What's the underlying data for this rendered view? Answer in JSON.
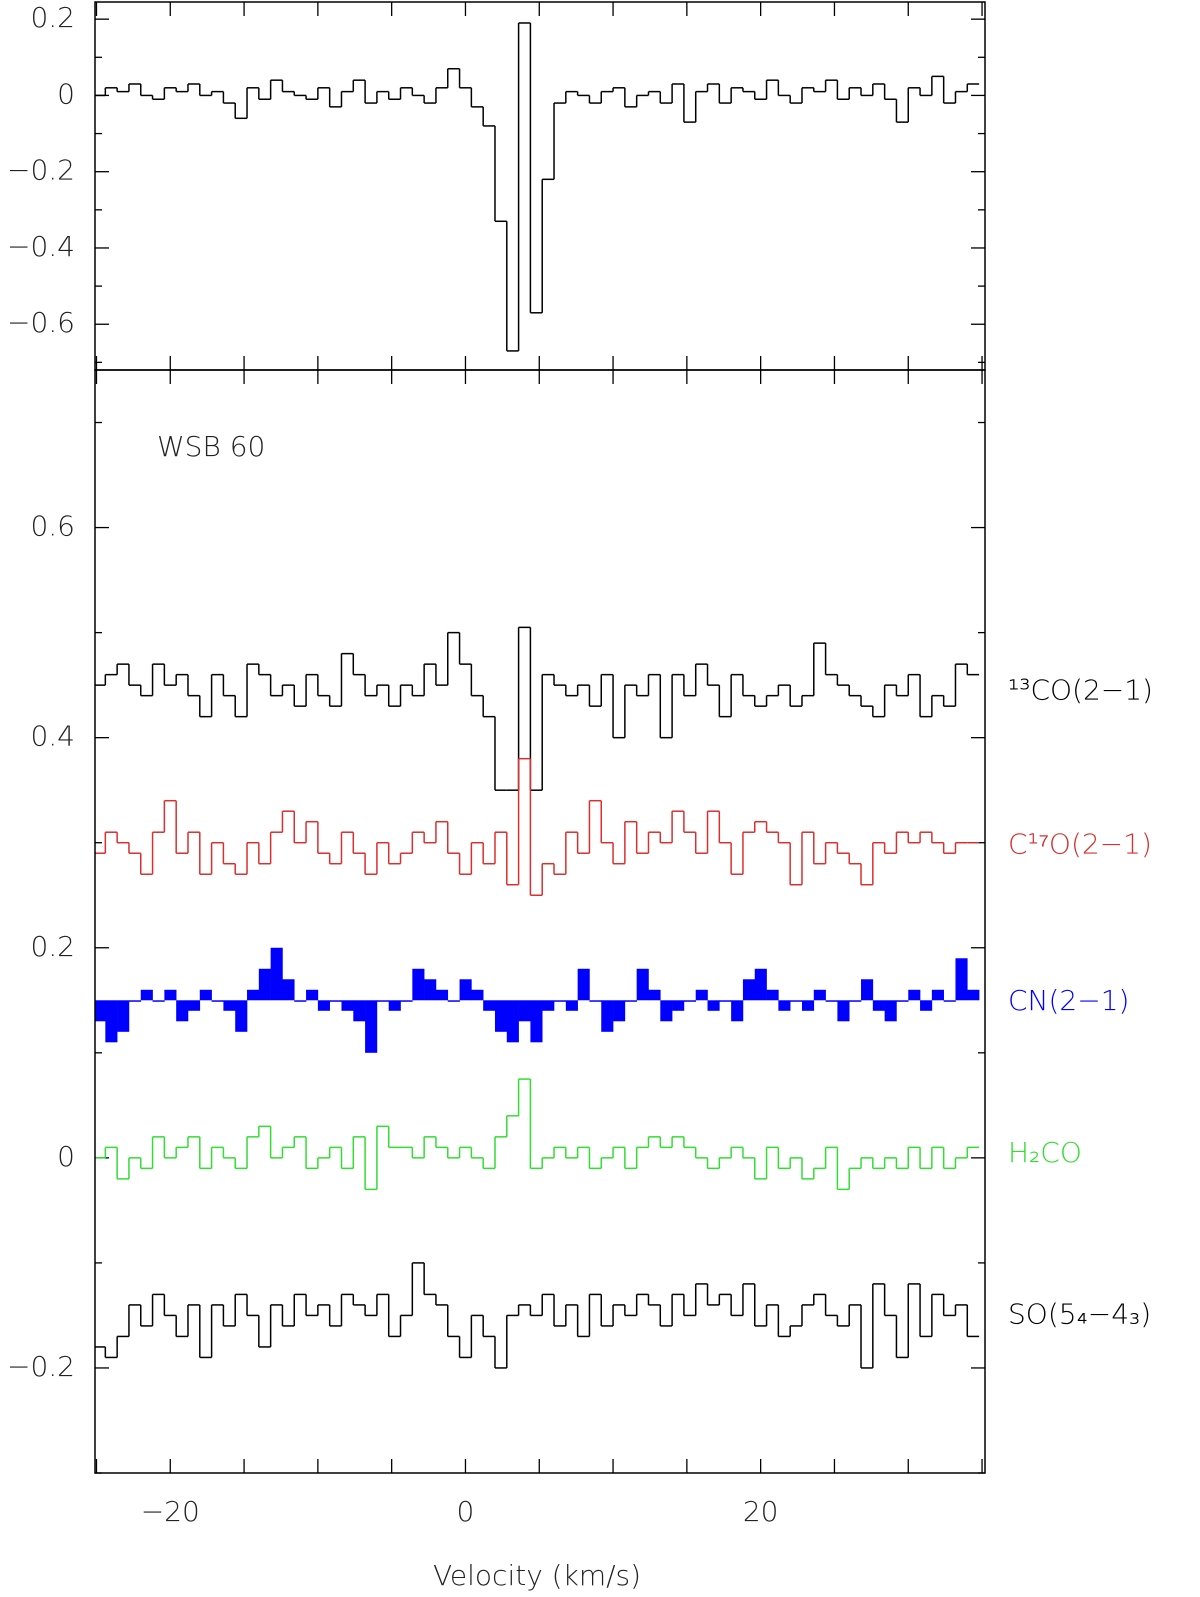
{
  "chart_data": [
    {
      "type": "step",
      "xlim": [
        -25.1,
        35.2
      ],
      "ylim": [
        -0.72,
        0.245
      ],
      "xticks": [
        -25,
        -20,
        -15,
        -10,
        -5,
        0,
        5,
        10,
        15,
        20,
        25,
        30,
        35
      ],
      "xtick_labels": false,
      "yticks": [
        0.2,
        0,
        {
          "value": -0.2,
          "label": "−0.2"
        },
        {
          "value": -0.4,
          "label": "−0.4"
        },
        {
          "value": -0.6,
          "label": "−0.6"
        }
      ],
      "yminorticks": [
        0.1,
        -0.1,
        -0.3,
        -0.5,
        -0.7
      ],
      "x": [
        -24.8,
        -24,
        -23.2,
        -22.4,
        -21.6,
        -20.8,
        -20,
        -19.2,
        -18.4,
        -17.6,
        -16.8,
        -16,
        -15.2,
        -14.4,
        -13.6,
        -12.8,
        -12,
        -11.2,
        -10.4,
        -9.6,
        -8.8,
        -8,
        -7.2,
        -6.4,
        -5.6,
        -4.8,
        -4,
        -3.2,
        -2.4,
        -1.6,
        -0.8,
        0,
        0.8,
        1.6,
        2.4,
        3.2,
        4,
        4.8,
        5.6,
        6.4,
        7.2,
        8,
        8.8,
        9.6,
        10.4,
        11.2,
        12,
        12.8,
        13.6,
        14.4,
        15.2,
        16,
        16.8,
        17.6,
        18.4,
        19.2,
        20,
        20.8,
        21.6,
        22.4,
        23.2,
        24,
        24.8,
        25.6,
        26.4,
        27.2,
        28,
        28.8,
        29.6,
        30.4,
        31.2,
        32,
        32.8,
        33.6,
        34.4
      ],
      "series": [
        {
          "color": "#000000",
          "values": [
            0.0,
            0.02,
            0.01,
            0.03,
            0.0,
            -0.01,
            0.02,
            0.01,
            0.03,
            0.0,
            0.01,
            -0.02,
            -0.06,
            0.02,
            -0.01,
            0.04,
            0.01,
            0.0,
            -0.01,
            0.02,
            -0.03,
            0.01,
            0.04,
            -0.02,
            0.01,
            -0.01,
            0.02,
            0.0,
            -0.02,
            0.02,
            0.07,
            0.02,
            -0.03,
            -0.08,
            -0.33,
            -0.67,
            0.19,
            -0.57,
            -0.22,
            -0.02,
            0.01,
            0.0,
            -0.02,
            0.01,
            0.02,
            -0.03,
            0.0,
            0.01,
            -0.02,
            0.03,
            -0.07,
            0.01,
            0.03,
            -0.02,
            0.02,
            0.01,
            -0.01,
            0.04,
            0.0,
            -0.02,
            0.02,
            0.01,
            0.04,
            -0.01,
            0.02,
            0.0,
            0.03,
            -0.01,
            -0.07,
            0.02,
            0.0,
            0.05,
            -0.02,
            0.01,
            0.03
          ]
        }
      ]
    },
    {
      "type": "step",
      "annotation": "WSB 60",
      "xlabel": "Velocity (km/s)",
      "xlim": [
        -25.1,
        35.2
      ],
      "ylim": [
        -0.3,
        0.75
      ],
      "xticks": [
        {
          "value": -20,
          "label": "−20"
        },
        0,
        20
      ],
      "xminorticks": [
        -25,
        -15,
        -10,
        -5,
        5,
        10,
        15,
        25,
        30,
        35
      ],
      "yticks": [
        0.6,
        0.4,
        0.2,
        0,
        {
          "value": -0.2,
          "label": "−0.2"
        }
      ],
      "yminorticks": [
        0.7,
        0.5,
        0.3,
        0.1,
        -0.1,
        -0.3
      ],
      "x": [
        -24.8,
        -24,
        -23.2,
        -22.4,
        -21.6,
        -20.8,
        -20,
        -19.2,
        -18.4,
        -17.6,
        -16.8,
        -16,
        -15.2,
        -14.4,
        -13.6,
        -12.8,
        -12,
        -11.2,
        -10.4,
        -9.6,
        -8.8,
        -8,
        -7.2,
        -6.4,
        -5.6,
        -4.8,
        -4,
        -3.2,
        -2.4,
        -1.6,
        -0.8,
        0,
        0.8,
        1.6,
        2.4,
        3.2,
        4,
        4.8,
        5.6,
        6.4,
        7.2,
        8,
        8.8,
        9.6,
        10.4,
        11.2,
        12,
        12.8,
        13.6,
        14.4,
        15.2,
        16,
        16.8,
        17.6,
        18.4,
        19.2,
        20,
        20.8,
        21.6,
        22.4,
        23.2,
        24,
        24.8,
        25.6,
        26.4,
        27.2,
        28,
        28.8,
        29.6,
        30.4,
        31.2,
        32,
        32.8,
        33.6,
        34.4
      ],
      "series": [
        {
          "name": "¹³CO(2−1)",
          "color": "#000000",
          "values": [
            0.45,
            0.46,
            0.47,
            0.45,
            0.44,
            0.47,
            0.45,
            0.46,
            0.44,
            0.42,
            0.46,
            0.44,
            0.42,
            0.47,
            0.46,
            0.44,
            0.45,
            0.43,
            0.46,
            0.44,
            0.43,
            0.48,
            0.46,
            0.44,
            0.45,
            0.43,
            0.45,
            0.44,
            0.47,
            0.45,
            0.5,
            0.47,
            0.44,
            0.42,
            0.35,
            0.35,
            0.505,
            0.35,
            0.46,
            0.45,
            0.44,
            0.45,
            0.43,
            0.46,
            0.4,
            0.45,
            0.44,
            0.46,
            0.4,
            0.46,
            0.44,
            0.47,
            0.45,
            0.42,
            0.46,
            0.44,
            0.43,
            0.44,
            0.45,
            0.43,
            0.44,
            0.49,
            0.46,
            0.45,
            0.44,
            0.43,
            0.42,
            0.45,
            0.44,
            0.46,
            0.42,
            0.44,
            0.43,
            0.47,
            0.46
          ]
        },
        {
          "name": "C¹⁷O(2−1)",
          "color": "#d83030",
          "values": [
            0.29,
            0.31,
            0.3,
            0.29,
            0.27,
            0.31,
            0.34,
            0.29,
            0.31,
            0.27,
            0.3,
            0.28,
            0.27,
            0.3,
            0.28,
            0.31,
            0.33,
            0.3,
            0.32,
            0.29,
            0.28,
            0.31,
            0.29,
            0.27,
            0.3,
            0.28,
            0.29,
            0.31,
            0.3,
            0.32,
            0.29,
            0.27,
            0.3,
            0.28,
            0.31,
            0.26,
            0.38,
            0.25,
            0.28,
            0.27,
            0.31,
            0.29,
            0.34,
            0.3,
            0.28,
            0.32,
            0.29,
            0.31,
            0.3,
            0.33,
            0.31,
            0.29,
            0.33,
            0.3,
            0.27,
            0.31,
            0.32,
            0.31,
            0.3,
            0.26,
            0.31,
            0.28,
            0.3,
            0.29,
            0.28,
            0.26,
            0.3,
            0.29,
            0.31,
            0.3,
            0.31,
            0.3,
            0.29,
            0.3,
            0.3
          ]
        },
        {
          "name": "CN(2−1)",
          "color": "#0000ff",
          "fill": true,
          "baseline": 0.15,
          "values": [
            0.13,
            0.11,
            0.12,
            0.15,
            0.16,
            0.15,
            0.16,
            0.13,
            0.14,
            0.16,
            0.15,
            0.14,
            0.12,
            0.16,
            0.18,
            0.2,
            0.17,
            0.15,
            0.16,
            0.14,
            0.15,
            0.14,
            0.13,
            0.1,
            0.15,
            0.14,
            0.15,
            0.18,
            0.17,
            0.16,
            0.15,
            0.17,
            0.16,
            0.14,
            0.12,
            0.11,
            0.13,
            0.11,
            0.14,
            0.15,
            0.14,
            0.18,
            0.15,
            0.12,
            0.13,
            0.15,
            0.18,
            0.16,
            0.13,
            0.14,
            0.15,
            0.16,
            0.14,
            0.15,
            0.13,
            0.17,
            0.18,
            0.16,
            0.14,
            0.15,
            0.14,
            0.16,
            0.15,
            0.13,
            0.15,
            0.17,
            0.14,
            0.13,
            0.15,
            0.16,
            0.14,
            0.16,
            0.15,
            0.19,
            0.16
          ]
        },
        {
          "name": "H₂CO",
          "color": "#33dd33",
          "values": [
            0.0,
            0.01,
            -0.02,
            0.0,
            -0.01,
            0.02,
            0.0,
            0.01,
            0.02,
            -0.01,
            0.01,
            0.0,
            -0.01,
            0.02,
            0.03,
            0.0,
            0.01,
            0.02,
            -0.01,
            0.0,
            0.01,
            -0.01,
            0.02,
            -0.03,
            0.03,
            0.01,
            0.01,
            0.0,
            0.02,
            0.01,
            0.0,
            0.01,
            0.0,
            -0.01,
            0.02,
            0.04,
            0.075,
            -0.01,
            0.0,
            0.01,
            0.0,
            0.01,
            -0.01,
            0.0,
            0.01,
            -0.01,
            0.01,
            0.02,
            0.01,
            0.02,
            0.01,
            0.0,
            -0.01,
            0.0,
            0.01,
            0.0,
            -0.02,
            0.01,
            -0.01,
            0.0,
            -0.02,
            -0.01,
            0.01,
            -0.03,
            -0.01,
            0.0,
            -0.01,
            0.0,
            -0.01,
            0.01,
            -0.01,
            0.01,
            -0.01,
            0.0,
            0.01
          ]
        },
        {
          "name": "SO(5₄−4₃)",
          "color": "#000000",
          "values": [
            -0.18,
            -0.19,
            -0.17,
            -0.14,
            -0.16,
            -0.13,
            -0.15,
            -0.17,
            -0.14,
            -0.19,
            -0.14,
            -0.16,
            -0.13,
            -0.15,
            -0.18,
            -0.14,
            -0.16,
            -0.13,
            -0.15,
            -0.14,
            -0.16,
            -0.13,
            -0.14,
            -0.15,
            -0.13,
            -0.17,
            -0.15,
            -0.1,
            -0.13,
            -0.14,
            -0.17,
            -0.19,
            -0.15,
            -0.17,
            -0.2,
            -0.15,
            -0.14,
            -0.15,
            -0.13,
            -0.16,
            -0.14,
            -0.17,
            -0.13,
            -0.16,
            -0.14,
            -0.15,
            -0.13,
            -0.14,
            -0.16,
            -0.13,
            -0.15,
            -0.12,
            -0.14,
            -0.13,
            -0.15,
            -0.12,
            -0.16,
            -0.14,
            -0.17,
            -0.16,
            -0.14,
            -0.13,
            -0.15,
            -0.16,
            -0.14,
            -0.2,
            -0.12,
            -0.15,
            -0.19,
            -0.12,
            -0.17,
            -0.13,
            -0.15,
            -0.14,
            -0.17
          ]
        }
      ]
    }
  ]
}
